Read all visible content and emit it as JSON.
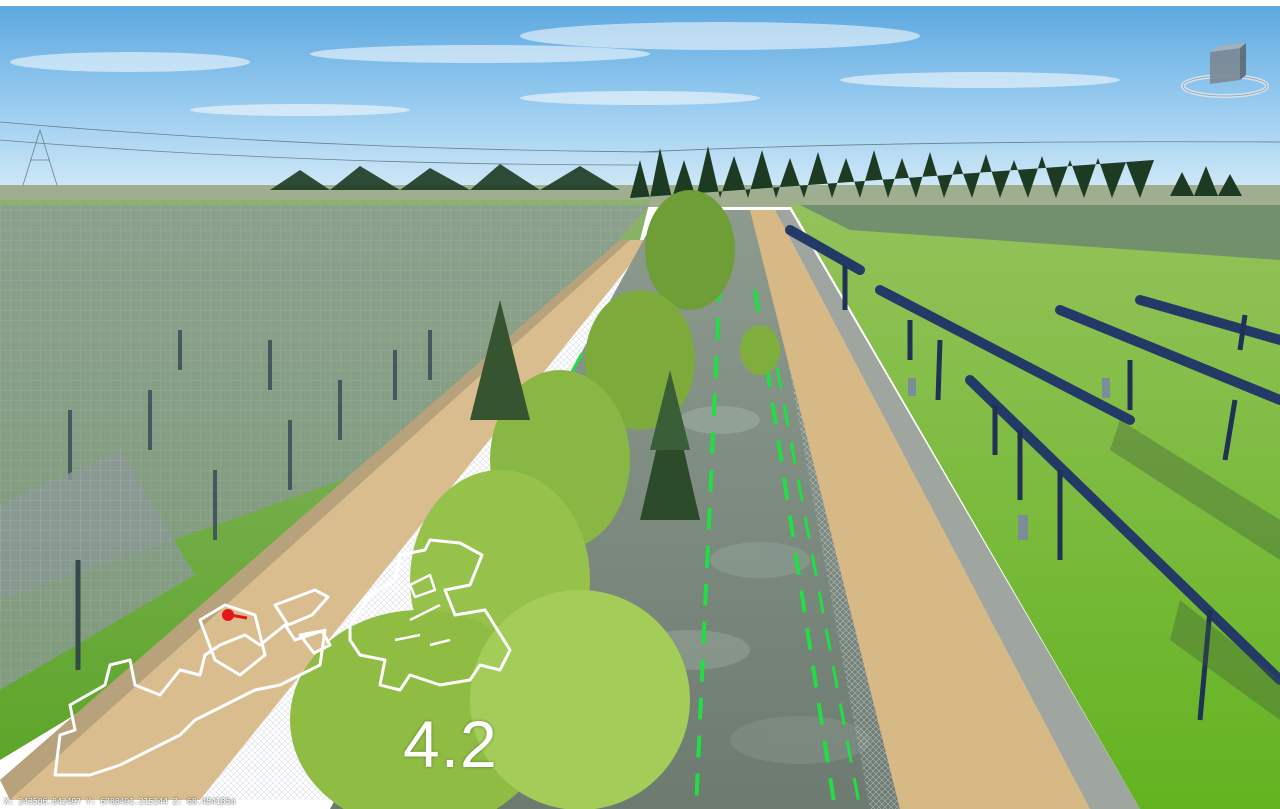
{
  "viewer": {
    "section_number": "4.2",
    "coordinates": "X: 243506.842497 Y: 6788491.215144 Z: 68.454185m",
    "nav_cube_icon": "navigation-cube-icon",
    "site_map_icon": "site-overview-map-icon",
    "location_marker_icon": "current-position-marker-icon"
  },
  "colors": {
    "sky_top": "#5aa7e0",
    "grass": "#6fbf2a",
    "path": "#d8b98a",
    "panels": "#2f3e5c",
    "dashed_line": "#22dd44",
    "marker": "#e8141c"
  }
}
